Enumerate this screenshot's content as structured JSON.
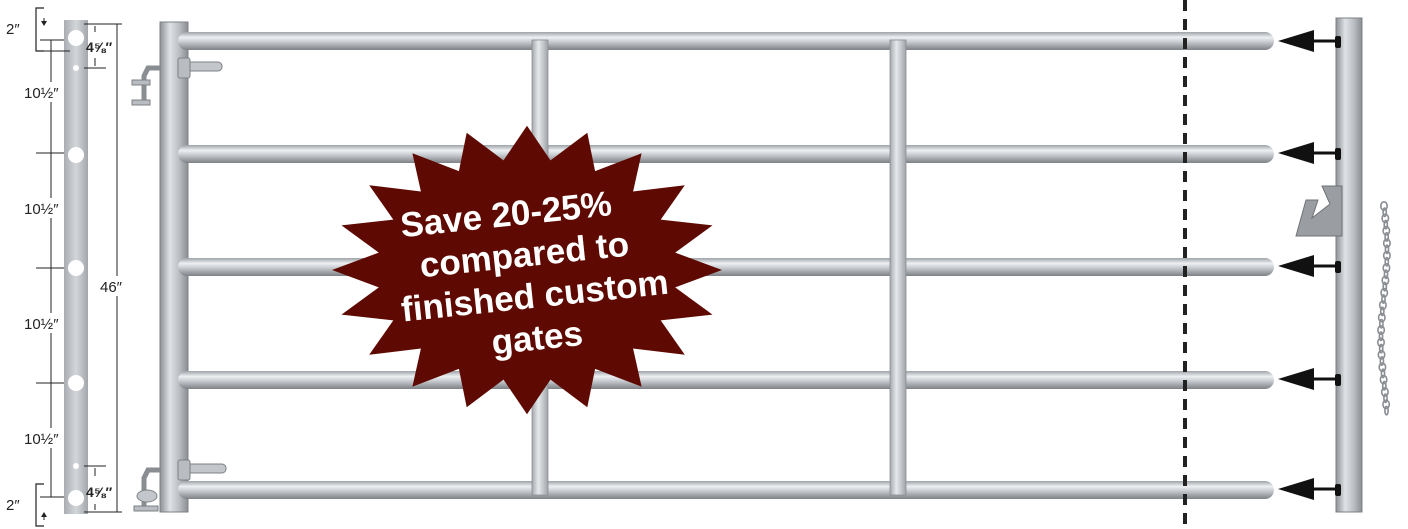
{
  "colors": {
    "burst_fill": "#5e0a02",
    "burst_text": "#ffffff",
    "metal_light": "#e3e6e8",
    "metal_mid": "#b9bdc1",
    "metal_dark": "#7d8186",
    "dimension_lines": "#222222",
    "cut_line": "#222222",
    "arrows": "#111111"
  },
  "dimensions": {
    "top_offset": "2″",
    "top_hole_gap": "4⅝″",
    "spacing_1": "10½″",
    "spacing_2": "10½″",
    "spacing_3": "10½″",
    "spacing_4": "10½″",
    "bottom_hole_gap": "4⅝″",
    "bottom_offset": "2″",
    "total_height": "46″"
  },
  "promo": {
    "line1": "Save 20-25%",
    "line2": "compared to",
    "line3": "finished custom",
    "line4": "gates"
  },
  "icons": {
    "arrows": "arrow-left-icon",
    "latch": "latch-icon",
    "chain": "chain-icon",
    "hinge": "hinge-icon",
    "cut_line": "dashed-cut-line"
  }
}
